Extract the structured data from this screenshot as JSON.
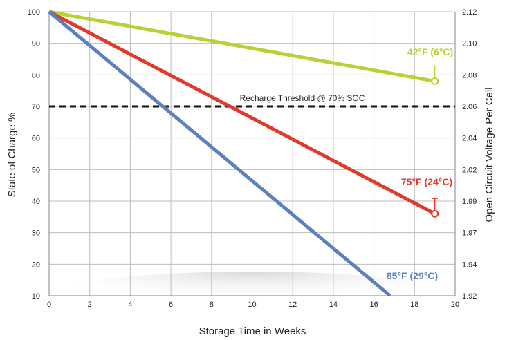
{
  "chart_data": {
    "type": "line",
    "title": "",
    "xlabel": "Storage Time in Weeks",
    "ylabel": "State of Charge %",
    "y2label": "Open Circuit Voltage Per Cell",
    "xlim": [
      0,
      20
    ],
    "ylim": [
      10,
      100
    ],
    "x_ticks": [
      "0",
      "2",
      "4",
      "6",
      "8",
      "10",
      "12",
      "14",
      "16",
      "18",
      "20"
    ],
    "y_ticks": [
      "10",
      "20",
      "30",
      "40",
      "50",
      "60",
      "70",
      "80",
      "90",
      "100"
    ],
    "y2_ticks": [
      "1.92",
      "1.94",
      "1.97",
      "1.99",
      "2.02",
      "2.04",
      "2.06",
      "2.08",
      "2.10",
      "2.12"
    ],
    "grid": true,
    "threshold": {
      "value": 70,
      "label": "Recharge Threshold @ 70% SOC"
    },
    "series": [
      {
        "name": "42°F (6°C)",
        "color": "#b5d334",
        "points": [
          [
            0,
            100
          ],
          [
            19,
            78
          ]
        ],
        "end_marker": true
      },
      {
        "name": "75°F (24°C)",
        "color": "#e13a2b",
        "points": [
          [
            0,
            100
          ],
          [
            19,
            36
          ]
        ],
        "end_marker": true
      },
      {
        "name": "85°F (29°C)",
        "color": "#5b7fc0",
        "points": [
          [
            0,
            100
          ],
          [
            16.8,
            10
          ]
        ],
        "end_marker": false
      }
    ]
  }
}
